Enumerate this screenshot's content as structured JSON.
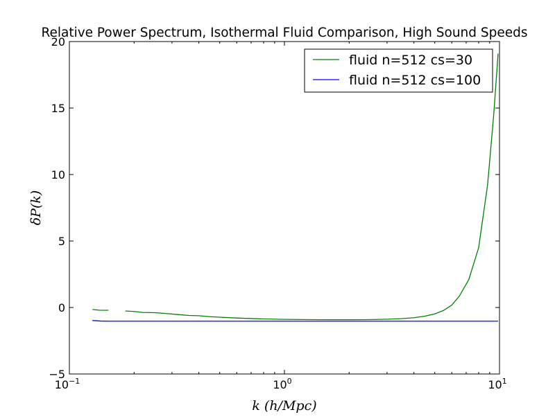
{
  "chart_data": {
    "type": "line",
    "title": "Relative Power Spectrum, Isothermal Fluid Comparison, High Sound Speeds",
    "xlabel": "k (h/Mpc)",
    "ylabel": "δP(k)",
    "xscale": "log",
    "xlim": [
      0.1,
      10
    ],
    "ylim": [
      -5,
      20
    ],
    "x_ticks": [
      0.1,
      1,
      10
    ],
    "x_tick_labels": [
      {
        "base": "10",
        "exp": "−1"
      },
      {
        "base": "10",
        "exp": "0"
      },
      {
        "base": "10",
        "exp": "1"
      }
    ],
    "y_ticks": [
      -5,
      0,
      5,
      10,
      15,
      20
    ],
    "y_tick_labels": [
      "−5",
      "0",
      "5",
      "10",
      "15",
      "20"
    ],
    "grid": false,
    "legend": {
      "placement": "top-right"
    },
    "series": [
      {
        "name": "fluid n=512 cs=30",
        "color": "#008000",
        "points": [
          [
            0.128,
            -0.15
          ],
          [
            0.138,
            -0.2
          ],
          [
            0.152,
            -0.21
          ],
          [
            null,
            null
          ],
          [
            0.182,
            -0.26
          ],
          [
            0.2,
            -0.3
          ],
          [
            0.22,
            -0.37
          ],
          [
            0.25,
            -0.39
          ],
          [
            0.28,
            -0.45
          ],
          [
            0.32,
            -0.53
          ],
          [
            0.36,
            -0.6
          ],
          [
            0.4,
            -0.62
          ],
          [
            0.45,
            -0.69
          ],
          [
            0.5,
            -0.73
          ],
          [
            0.6,
            -0.79
          ],
          [
            0.7,
            -0.83
          ],
          [
            0.8,
            -0.86
          ],
          [
            1.0,
            -0.89
          ],
          [
            1.3,
            -0.91
          ],
          [
            1.6,
            -0.92
          ],
          [
            2.0,
            -0.92
          ],
          [
            2.5,
            -0.91
          ],
          [
            3.0,
            -0.88
          ],
          [
            3.5,
            -0.84
          ],
          [
            4.0,
            -0.77
          ],
          [
            4.5,
            -0.65
          ],
          [
            5.0,
            -0.48
          ],
          [
            5.5,
            -0.22
          ],
          [
            6.0,
            0.18
          ],
          [
            6.5,
            0.85
          ],
          [
            7.2,
            2.1
          ],
          [
            8.0,
            4.5
          ],
          [
            8.8,
            9.2
          ],
          [
            9.4,
            14.5
          ],
          [
            9.85,
            19.1
          ]
        ]
      },
      {
        "name": "fluid n=512 cs=100",
        "color": "#0000ff",
        "points": [
          [
            0.128,
            -0.98
          ],
          [
            0.14,
            -1.02
          ],
          [
            0.152,
            -1.03
          ],
          [
            0.2,
            -1.03
          ],
          [
            1.0,
            -1.03
          ],
          [
            5.0,
            -1.03
          ],
          [
            9.85,
            -1.03
          ]
        ]
      }
    ]
  }
}
